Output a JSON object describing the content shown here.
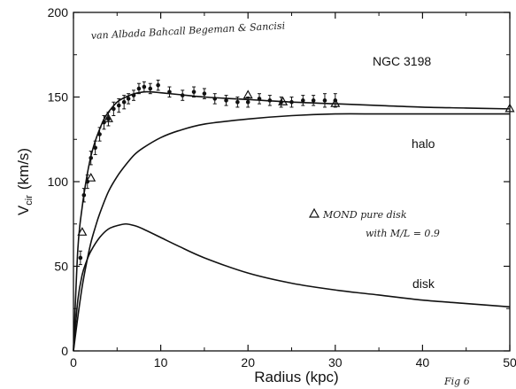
{
  "chart_data": {
    "type": "line",
    "xlabel": "Radius (kpc)",
    "ylabel_main": "V",
    "ylabel_sub": "cir",
    "ylabel_unit": "(km/s)",
    "xlim": [
      0,
      50
    ],
    "ylim": [
      0,
      200
    ],
    "x_ticks": [
      0,
      10,
      20,
      30,
      40,
      50
    ],
    "y_ticks": [
      0,
      50,
      100,
      150,
      200
    ],
    "grid": false,
    "annotations": {
      "galaxy": "NGC 3198",
      "authors": "van Albada Bahcall Begeman & Sancisi",
      "halo": "halo",
      "disk": "disk",
      "mond_line1": "MOND pure disk",
      "mond_line2": "with M/L = 0.9",
      "fig": "Fig 6"
    },
    "series": [
      {
        "name": "total",
        "x": [
          0,
          0.5,
          1,
          1.5,
          2,
          2.5,
          3,
          3.5,
          4,
          5,
          6,
          7,
          8,
          9,
          10,
          12,
          15,
          20,
          25,
          30,
          35,
          40,
          45,
          50
        ],
        "y": [
          0,
          60,
          85,
          102,
          115,
          124,
          131,
          137,
          141,
          147,
          150,
          152,
          153,
          153,
          152.5,
          151.5,
          150,
          148.5,
          147,
          146,
          145,
          144,
          143.5,
          143
        ]
      },
      {
        "name": "halo",
        "x": [
          0,
          0.5,
          1,
          1.5,
          2,
          2.5,
          3,
          4,
          5,
          6,
          7,
          8,
          10,
          12,
          15,
          20,
          25,
          30,
          35,
          40,
          45,
          50
        ],
        "y": [
          0,
          20,
          38,
          52,
          64,
          73,
          81,
          94,
          103,
          110,
          116,
          120,
          126,
          130,
          134,
          137,
          139,
          140,
          140,
          140,
          140,
          140
        ]
      },
      {
        "name": "disk",
        "x": [
          0,
          0.5,
          1,
          1.5,
          2,
          3,
          4,
          5,
          6,
          7,
          8,
          10,
          12,
          15,
          20,
          25,
          30,
          35,
          40,
          45,
          50
        ],
        "y": [
          0,
          30,
          45,
          53,
          59,
          67,
          72,
          74,
          75,
          74,
          72,
          67,
          62,
          55,
          46,
          40,
          36,
          33,
          30,
          28,
          26
        ]
      },
      {
        "name": "observed",
        "x": [
          0.8,
          1.2,
          1.6,
          2.0,
          2.5,
          3.0,
          3.5,
          4.0,
          4.6,
          5.2,
          5.8,
          6.3,
          6.9,
          7.5,
          8.1,
          8.8,
          9.7,
          11.0,
          12.5,
          13.8,
          15.0,
          16.2,
          17.5,
          18.8,
          20.0,
          21.3,
          22.5,
          23.8,
          25.0,
          26.3,
          27.5,
          28.8,
          30.0
        ],
        "y": [
          55,
          92,
          100,
          114,
          120,
          128,
          135,
          137,
          143,
          145,
          147,
          149,
          151,
          155,
          156,
          155,
          157,
          153,
          151,
          153,
          152,
          149,
          148,
          147,
          147,
          149,
          148,
          147,
          147,
          148,
          148,
          148,
          148
        ],
        "err": [
          4,
          4,
          4,
          4,
          4,
          4,
          4,
          4,
          4,
          4,
          4,
          3,
          3,
          3,
          3,
          3,
          3,
          3,
          3,
          3,
          3,
          3,
          3,
          3,
          3,
          3,
          3,
          3,
          3,
          3,
          3,
          4,
          4
        ]
      },
      {
        "name": "MOND",
        "marker": "triangle",
        "x": [
          1.0,
          2.0,
          4.0,
          20.0,
          24.0,
          30.0,
          50.0
        ],
        "y": [
          70,
          102,
          137,
          151,
          147,
          146,
          143
        ]
      }
    ]
  }
}
